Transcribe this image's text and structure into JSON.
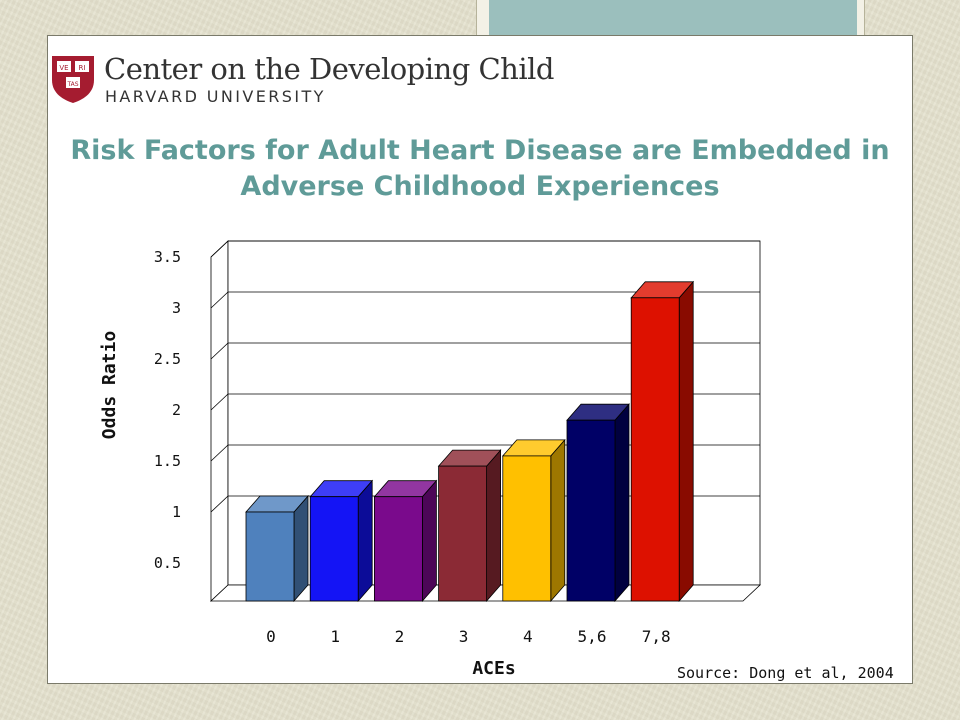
{
  "logo": {
    "title": "Center on the Developing Child",
    "subtitle": "HARVARD UNIVERSITY",
    "shield_text": [
      "VE",
      "RI",
      "TAS"
    ],
    "shield_color": "#a51c30"
  },
  "slide": {
    "title": "Risk Factors for Adult Heart Disease are Embedded in Adverse Childhood Experiences",
    "source": "Source: Dong et al, 2004"
  },
  "colors": {
    "title": "#5f9b98",
    "accent_box": "#9bbfbd"
  },
  "chart_data": {
    "type": "bar",
    "style": "3d",
    "xlabel": "ACEs",
    "ylabel": "Odds Ratio",
    "categories": [
      "0",
      "1",
      "2",
      "3",
      "4",
      "5,6",
      "7,8"
    ],
    "values": [
      1.0,
      1.15,
      1.15,
      1.45,
      1.55,
      1.9,
      3.1
    ],
    "bar_colors": [
      "#4f81bd",
      "#1414f5",
      "#7a0a8c",
      "#8b2a35",
      "#ffc000",
      "#000066",
      "#dd1100"
    ],
    "yticks": [
      "0.5",
      "1",
      "1.5",
      "2",
      "2.5",
      "3",
      "3.5"
    ],
    "ylim": [
      0.5,
      3.5
    ],
    "grid": true,
    "legend": "none"
  }
}
